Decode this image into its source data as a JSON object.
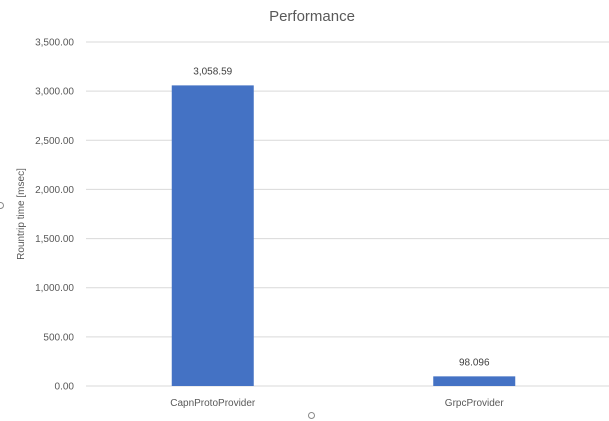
{
  "chart_data": {
    "type": "bar",
    "title": "Performance",
    "xlabel": "",
    "ylabel": "Rountrip time [msec]",
    "categories": [
      "CapnProtoProvider",
      "GrpcProvider"
    ],
    "series": [
      {
        "values": [
          3058.59,
          98.096
        ],
        "color": "#4472C4"
      }
    ],
    "data_labels": [
      "3,058.59",
      "98.096"
    ],
    "ylim": [
      0,
      3500
    ],
    "yticks": [
      0,
      500,
      1000,
      1500,
      2000,
      2500,
      3000,
      3500
    ],
    "ytick_labels": [
      "0.00",
      "500.00",
      "1,000.00",
      "1,500.00",
      "2,000.00",
      "2,500.00",
      "3,000.00",
      "3,500.00"
    ],
    "grid": true,
    "legend": "none"
  },
  "colors": {
    "gridline": "#d9d9d9",
    "axis_text": "#595959",
    "title_text": "#595959",
    "label_text": "#404040"
  }
}
